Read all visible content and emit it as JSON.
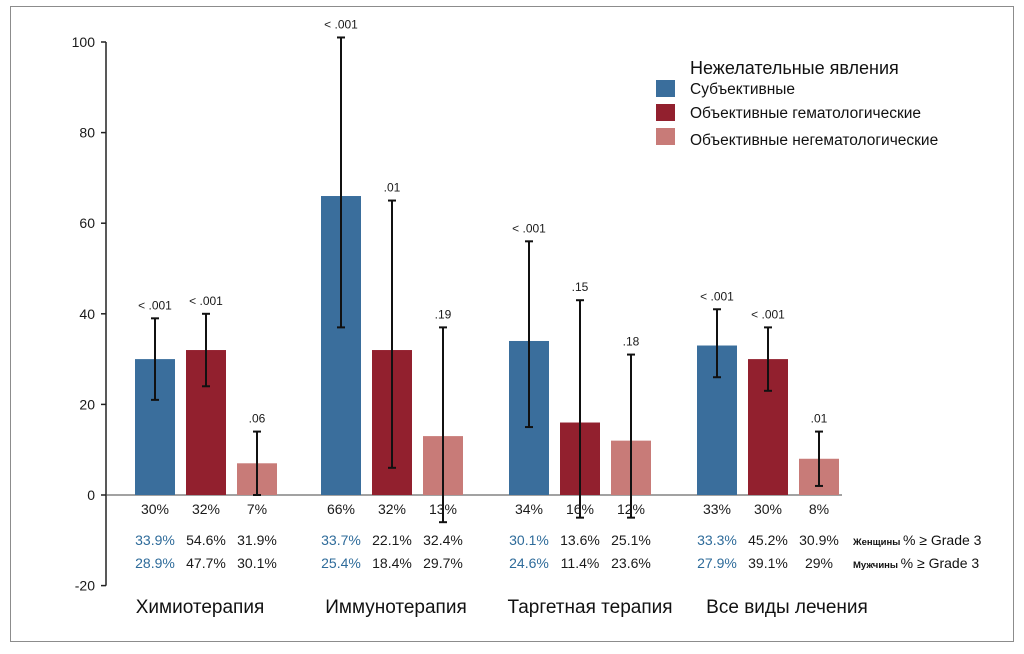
{
  "chart_data": {
    "type": "bar",
    "ylim": [
      -20,
      100
    ],
    "yticks": [
      -20,
      0,
      20,
      40,
      60,
      80,
      100
    ],
    "categories": [
      "Химиотерапия",
      "Иммунотерапия",
      "Таргетная терапия",
      "Все виды лечения"
    ],
    "legend": {
      "title": "Нежелательные явления",
      "position": "top-right"
    },
    "series": [
      {
        "name": "Субъективные",
        "color": "#3a6e9c",
        "values": [
          30,
          66,
          34,
          33
        ],
        "err_low": [
          21,
          37,
          15,
          26
        ],
        "err_high": [
          39,
          101,
          56,
          41
        ],
        "p_values": [
          "< .001",
          "< .001",
          "< .001",
          "< .001"
        ],
        "value_labels": [
          "30%",
          "66%",
          "34%",
          "33%"
        ],
        "women": [
          "33.9%",
          "33.7%",
          "30.1%",
          "33.3%"
        ],
        "men": [
          "28.9%",
          "25.4%",
          "24.6%",
          "27.9%"
        ]
      },
      {
        "name": "Объективные гематологические",
        "color": "#92202e",
        "values": [
          32,
          32,
          16,
          30
        ],
        "err_low": [
          24,
          6,
          -5,
          23
        ],
        "err_high": [
          40,
          65,
          43,
          37
        ],
        "p_values": [
          "< .001",
          ".01",
          ".15",
          "< .001"
        ],
        "value_labels": [
          "32%",
          "32%",
          "16%",
          "30%"
        ],
        "women": [
          "54.6%",
          "22.1%",
          "13.6%",
          "45.2%"
        ],
        "men": [
          "47.7%",
          "18.4%",
          "11.4%",
          "39.1%"
        ]
      },
      {
        "name": "Объективные негематологические",
        "color": "#c87b78",
        "values": [
          7,
          13,
          12,
          8
        ],
        "err_low": [
          0,
          -6,
          -5,
          2
        ],
        "err_high": [
          14,
          37,
          31,
          14
        ],
        "p_values": [
          ".06",
          ".19",
          ".18",
          ".01"
        ],
        "value_labels": [
          "7%",
          "13%",
          "12%",
          "8%"
        ],
        "women": [
          "31.9%",
          "32.4%",
          "25.1%",
          "30.9%"
        ],
        "men": [
          "30.1%",
          "29.7%",
          "23.6%",
          "29%"
        ]
      }
    ],
    "row_labels": {
      "women_prefix": "Женщины",
      "women_suffix": "% ≥ Grade 3",
      "men_prefix": "Мужчины",
      "men_suffix": "% ≥ Grade 3"
    }
  }
}
